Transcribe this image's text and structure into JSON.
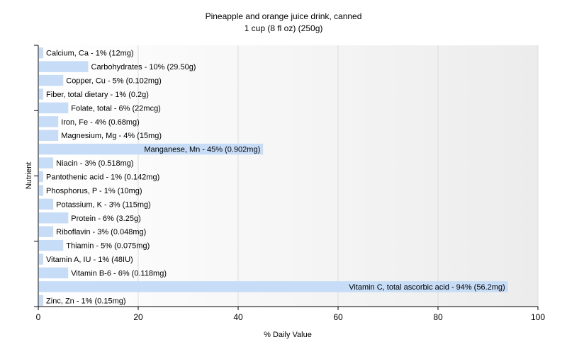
{
  "chart_data": {
    "type": "bar",
    "orientation": "horizontal",
    "title": "Pineapple and orange juice drink, canned",
    "subtitle": "1 cup (8 fl oz) (250g)",
    "xlabel": "% Daily Value",
    "ylabel": "Nutrient",
    "xlim": [
      0,
      100
    ],
    "xticks": [
      0,
      20,
      40,
      60,
      80,
      100
    ],
    "grid": true,
    "bar_color": "#c6dcf7",
    "categories": [
      "Calcium, Ca",
      "Carbohydrates",
      "Copper, Cu",
      "Fiber, total dietary",
      "Folate, total",
      "Iron, Fe",
      "Magnesium, Mg",
      "Manganese, Mn",
      "Niacin",
      "Pantothenic acid",
      "Phosphorus, P",
      "Potassium, K",
      "Protein",
      "Riboflavin",
      "Thiamin",
      "Vitamin A, IU",
      "Vitamin B-6",
      "Vitamin C, total ascorbic acid",
      "Zinc, Zn"
    ],
    "values": [
      1,
      10,
      5,
      1,
      6,
      4,
      4,
      45,
      3,
      1,
      1,
      3,
      6,
      3,
      5,
      1,
      6,
      94,
      1
    ],
    "labels": [
      "Calcium, Ca - 1% (12mg)",
      "Carbohydrates - 10% (29.50g)",
      "Copper, Cu - 5% (0.102mg)",
      "Fiber, total dietary - 1% (0.2g)",
      "Folate, total - 6% (22mcg)",
      "Iron, Fe - 4% (0.68mg)",
      "Magnesium, Mg - 4% (15mg)",
      "Manganese, Mn - 45% (0.902mg)",
      "Niacin - 3% (0.518mg)",
      "Pantothenic acid - 1% (0.142mg)",
      "Phosphorus, P - 1% (10mg)",
      "Potassium, K - 3% (115mg)",
      "Protein - 6% (3.25g)",
      "Riboflavin - 3% (0.048mg)",
      "Thiamin - 5% (0.075mg)",
      "Vitamin A, IU - 1% (48IU)",
      "Vitamin B-6 - 6% (0.118mg)",
      "Vitamin C, total ascorbic acid - 94% (56.2mg)",
      "Zinc, Zn - 1% (0.15mg)"
    ]
  }
}
